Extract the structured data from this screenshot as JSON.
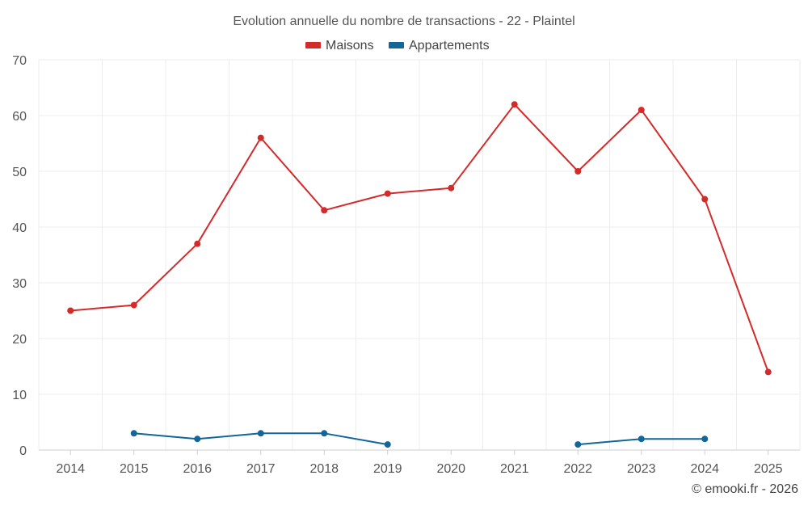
{
  "chart_data": {
    "type": "line",
    "title": "Evolution annuelle du nombre de transactions - 22 - Plaintel",
    "categories": [
      "2014",
      "2015",
      "2016",
      "2017",
      "2018",
      "2019",
      "2020",
      "2021",
      "2022",
      "2023",
      "2024",
      "2025"
    ],
    "ylim": [
      0,
      70
    ],
    "yticks": [
      0,
      10,
      20,
      30,
      40,
      50,
      60,
      70
    ],
    "grid": true,
    "legend_position": "top-center",
    "series": [
      {
        "name": "Maisons",
        "color": "#d42a2a",
        "values": [
          25,
          26,
          37,
          56,
          43,
          46,
          47,
          62,
          50,
          61,
          45,
          14
        ]
      },
      {
        "name": "Appartements",
        "color": "#126699",
        "values": [
          null,
          3,
          2,
          3,
          3,
          1,
          null,
          null,
          1,
          2,
          2,
          null
        ]
      }
    ]
  },
  "credit": "© emooki.fr - 2026"
}
